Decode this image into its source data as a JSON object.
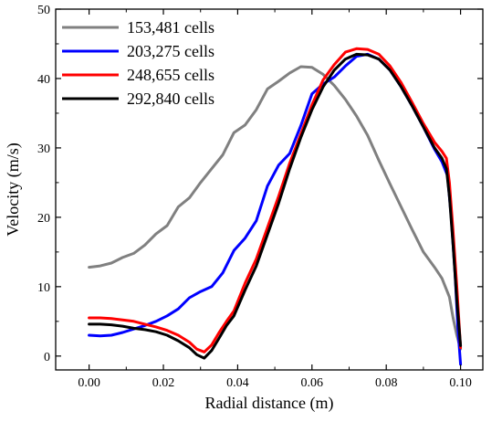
{
  "chart_data": {
    "type": "line",
    "title": "",
    "xlabel": "Radial distance (m)",
    "ylabel": "Velocity (m/s)",
    "xlim": [
      -0.009,
      0.106
    ],
    "ylim": [
      -2,
      50
    ],
    "xticks": [
      "0.00",
      "0.02",
      "0.04",
      "0.06",
      "0.08",
      "0.10"
    ],
    "yticks": [
      "0",
      "10",
      "20",
      "30",
      "40",
      "50"
    ],
    "grid": false,
    "legend_position": "top-left",
    "series": [
      {
        "name": "153,481 cells",
        "color": "#808080",
        "points": [
          [
            0.0,
            12.8
          ],
          [
            0.003,
            13.0
          ],
          [
            0.006,
            13.4
          ],
          [
            0.009,
            14.2
          ],
          [
            0.012,
            14.8
          ],
          [
            0.015,
            16.0
          ],
          [
            0.018,
            17.6
          ],
          [
            0.021,
            18.8
          ],
          [
            0.024,
            21.5
          ],
          [
            0.027,
            22.8
          ],
          [
            0.03,
            25.0
          ],
          [
            0.033,
            27.0
          ],
          [
            0.036,
            29.0
          ],
          [
            0.039,
            32.2
          ],
          [
            0.042,
            33.3
          ],
          [
            0.045,
            35.5
          ],
          [
            0.048,
            38.5
          ],
          [
            0.051,
            39.6
          ],
          [
            0.054,
            40.8
          ],
          [
            0.057,
            41.7
          ],
          [
            0.06,
            41.6
          ],
          [
            0.063,
            40.6
          ],
          [
            0.066,
            39.0
          ],
          [
            0.069,
            37.0
          ],
          [
            0.072,
            34.6
          ],
          [
            0.075,
            31.8
          ],
          [
            0.078,
            28.2
          ],
          [
            0.081,
            24.8
          ],
          [
            0.084,
            21.5
          ],
          [
            0.087,
            18.2
          ],
          [
            0.09,
            15.0
          ],
          [
            0.093,
            12.8
          ],
          [
            0.095,
            11.2
          ],
          [
            0.097,
            8.5
          ],
          [
            0.098,
            5.5
          ],
          [
            0.099,
            3.0
          ],
          [
            0.1,
            1.0
          ]
        ]
      },
      {
        "name": "203,275 cells",
        "color": "#0000ff",
        "points": [
          [
            0.0,
            3.0
          ],
          [
            0.003,
            2.9
          ],
          [
            0.006,
            3.0
          ],
          [
            0.009,
            3.4
          ],
          [
            0.012,
            3.9
          ],
          [
            0.015,
            4.4
          ],
          [
            0.018,
            5.0
          ],
          [
            0.021,
            5.8
          ],
          [
            0.024,
            6.8
          ],
          [
            0.027,
            8.4
          ],
          [
            0.03,
            9.3
          ],
          [
            0.033,
            10.0
          ],
          [
            0.036,
            12.0
          ],
          [
            0.039,
            15.2
          ],
          [
            0.042,
            17.0
          ],
          [
            0.045,
            19.5
          ],
          [
            0.048,
            24.5
          ],
          [
            0.051,
            27.5
          ],
          [
            0.054,
            29.2
          ],
          [
            0.057,
            33.2
          ],
          [
            0.06,
            37.8
          ],
          [
            0.063,
            39.2
          ],
          [
            0.066,
            40.2
          ],
          [
            0.069,
            41.8
          ],
          [
            0.072,
            43.2
          ],
          [
            0.075,
            43.5
          ],
          [
            0.078,
            42.8
          ],
          [
            0.081,
            41.2
          ],
          [
            0.084,
            38.8
          ],
          [
            0.087,
            36.0
          ],
          [
            0.09,
            33.0
          ],
          [
            0.093,
            29.8
          ],
          [
            0.095,
            28.0
          ],
          [
            0.0965,
            26.0
          ],
          [
            0.0975,
            20.0
          ],
          [
            0.0985,
            12.0
          ],
          [
            0.0993,
            4.0
          ],
          [
            0.1,
            -1.2
          ]
        ]
      },
      {
        "name": "248,655 cells",
        "color": "#ff0000",
        "points": [
          [
            0.0,
            5.5
          ],
          [
            0.003,
            5.5
          ],
          [
            0.006,
            5.4
          ],
          [
            0.009,
            5.2
          ],
          [
            0.012,
            5.0
          ],
          [
            0.015,
            4.6
          ],
          [
            0.018,
            4.2
          ],
          [
            0.021,
            3.7
          ],
          [
            0.024,
            3.0
          ],
          [
            0.027,
            2.0
          ],
          [
            0.029,
            1.0
          ],
          [
            0.031,
            0.6
          ],
          [
            0.033,
            1.6
          ],
          [
            0.035,
            3.4
          ],
          [
            0.037,
            5.0
          ],
          [
            0.039,
            6.5
          ],
          [
            0.042,
            10.5
          ],
          [
            0.045,
            14.0
          ],
          [
            0.048,
            18.5
          ],
          [
            0.051,
            23.0
          ],
          [
            0.054,
            27.8
          ],
          [
            0.057,
            32.0
          ],
          [
            0.06,
            36.2
          ],
          [
            0.063,
            39.8
          ],
          [
            0.066,
            42.0
          ],
          [
            0.069,
            43.8
          ],
          [
            0.072,
            44.3
          ],
          [
            0.075,
            44.2
          ],
          [
            0.078,
            43.5
          ],
          [
            0.081,
            41.8
          ],
          [
            0.084,
            39.4
          ],
          [
            0.087,
            36.5
          ],
          [
            0.09,
            33.5
          ],
          [
            0.093,
            30.8
          ],
          [
            0.095,
            29.5
          ],
          [
            0.0962,
            28.5
          ],
          [
            0.097,
            25.0
          ],
          [
            0.098,
            18.0
          ],
          [
            0.099,
            10.0
          ],
          [
            0.1,
            1.2
          ]
        ]
      },
      {
        "name": "292,840 cells",
        "color": "#000000",
        "points": [
          [
            0.0,
            4.6
          ],
          [
            0.003,
            4.6
          ],
          [
            0.006,
            4.5
          ],
          [
            0.009,
            4.3
          ],
          [
            0.012,
            4.0
          ],
          [
            0.015,
            3.8
          ],
          [
            0.018,
            3.5
          ],
          [
            0.021,
            3.0
          ],
          [
            0.024,
            2.2
          ],
          [
            0.027,
            1.2
          ],
          [
            0.029,
            0.2
          ],
          [
            0.031,
            -0.3
          ],
          [
            0.033,
            0.8
          ],
          [
            0.035,
            2.6
          ],
          [
            0.037,
            4.4
          ],
          [
            0.039,
            5.8
          ],
          [
            0.042,
            9.5
          ],
          [
            0.045,
            13.0
          ],
          [
            0.048,
            17.5
          ],
          [
            0.051,
            22.0
          ],
          [
            0.054,
            27.0
          ],
          [
            0.057,
            31.5
          ],
          [
            0.06,
            35.5
          ],
          [
            0.063,
            38.8
          ],
          [
            0.066,
            41.2
          ],
          [
            0.069,
            42.8
          ],
          [
            0.072,
            43.5
          ],
          [
            0.075,
            43.4
          ],
          [
            0.078,
            42.8
          ],
          [
            0.081,
            41.2
          ],
          [
            0.084,
            38.8
          ],
          [
            0.087,
            36.0
          ],
          [
            0.09,
            33.0
          ],
          [
            0.093,
            30.0
          ],
          [
            0.095,
            28.5
          ],
          [
            0.0962,
            27.0
          ],
          [
            0.097,
            23.0
          ],
          [
            0.098,
            16.0
          ],
          [
            0.099,
            8.0
          ],
          [
            0.1,
            1.5
          ]
        ]
      }
    ]
  }
}
